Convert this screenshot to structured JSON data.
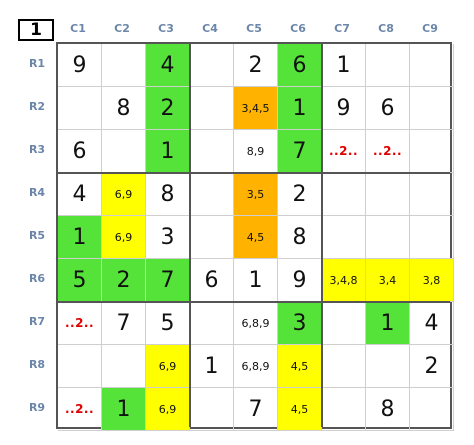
{
  "corner_label": "1",
  "columns": [
    "C1",
    "C2",
    "C3",
    "C4",
    "C5",
    "C6",
    "C7",
    "C8",
    "C9"
  ],
  "rows": [
    "R1",
    "R2",
    "R3",
    "R4",
    "R5",
    "R6",
    "R7",
    "R8",
    "R9"
  ],
  "colors": {
    "green": "#55e33a",
    "yellow": "#ffff00",
    "orange": "#ffb300",
    "hint_red": "#e00000"
  },
  "cells": [
    [
      {
        "t": "9",
        "k": "given"
      },
      {
        "t": "",
        "k": "given"
      },
      {
        "t": "4",
        "k": "given",
        "c": "green"
      },
      {
        "t": "",
        "k": "given"
      },
      {
        "t": "2",
        "k": "given"
      },
      {
        "t": "6",
        "k": "given",
        "c": "green"
      },
      {
        "t": "1",
        "k": "given"
      },
      {
        "t": "",
        "k": "given"
      },
      {
        "t": "",
        "k": "given"
      }
    ],
    [
      {
        "t": "",
        "k": "given"
      },
      {
        "t": "8",
        "k": "given"
      },
      {
        "t": "2",
        "k": "given",
        "c": "green"
      },
      {
        "t": "",
        "k": "given"
      },
      {
        "t": "3,4,5",
        "k": "cand",
        "c": "orange"
      },
      {
        "t": "1",
        "k": "given",
        "c": "green"
      },
      {
        "t": "9",
        "k": "given"
      },
      {
        "t": "6",
        "k": "given"
      },
      {
        "t": "",
        "k": "given"
      }
    ],
    [
      {
        "t": "6",
        "k": "given"
      },
      {
        "t": "",
        "k": "given"
      },
      {
        "t": "1",
        "k": "given",
        "c": "green"
      },
      {
        "t": "",
        "k": "given"
      },
      {
        "t": "8,9",
        "k": "cand"
      },
      {
        "t": "7",
        "k": "given",
        "c": "green"
      },
      {
        "t": "..2..",
        "k": "hint"
      },
      {
        "t": "..2..",
        "k": "hint"
      },
      {
        "t": "",
        "k": "given"
      }
    ],
    [
      {
        "t": "4",
        "k": "given"
      },
      {
        "t": "6,9",
        "k": "cand",
        "c": "yellow"
      },
      {
        "t": "8",
        "k": "given"
      },
      {
        "t": "",
        "k": "given"
      },
      {
        "t": "3,5",
        "k": "cand",
        "c": "orange"
      },
      {
        "t": "2",
        "k": "given"
      },
      {
        "t": "",
        "k": "given"
      },
      {
        "t": "",
        "k": "given"
      },
      {
        "t": "",
        "k": "given"
      }
    ],
    [
      {
        "t": "1",
        "k": "given",
        "c": "green"
      },
      {
        "t": "6,9",
        "k": "cand",
        "c": "yellow"
      },
      {
        "t": "3",
        "k": "given"
      },
      {
        "t": "",
        "k": "given"
      },
      {
        "t": "4,5",
        "k": "cand",
        "c": "orange"
      },
      {
        "t": "8",
        "k": "given"
      },
      {
        "t": "",
        "k": "given"
      },
      {
        "t": "",
        "k": "given"
      },
      {
        "t": "",
        "k": "given"
      }
    ],
    [
      {
        "t": "5",
        "k": "given",
        "c": "green"
      },
      {
        "t": "2",
        "k": "given",
        "c": "green"
      },
      {
        "t": "7",
        "k": "given",
        "c": "green"
      },
      {
        "t": "6",
        "k": "given"
      },
      {
        "t": "1",
        "k": "given"
      },
      {
        "t": "9",
        "k": "given"
      },
      {
        "t": "3,4,8",
        "k": "cand",
        "c": "yellow"
      },
      {
        "t": "3,4",
        "k": "cand",
        "c": "yellow"
      },
      {
        "t": "3,8",
        "k": "cand",
        "c": "yellow"
      }
    ],
    [
      {
        "t": "..2..",
        "k": "hint"
      },
      {
        "t": "7",
        "k": "given"
      },
      {
        "t": "5",
        "k": "given"
      },
      {
        "t": "",
        "k": "given"
      },
      {
        "t": "6,8,9",
        "k": "cand"
      },
      {
        "t": "3",
        "k": "given",
        "c": "green"
      },
      {
        "t": "",
        "k": "given"
      },
      {
        "t": "1",
        "k": "given",
        "c": "green"
      },
      {
        "t": "4",
        "k": "given"
      }
    ],
    [
      {
        "t": "",
        "k": "given"
      },
      {
        "t": "",
        "k": "given"
      },
      {
        "t": "6,9",
        "k": "cand",
        "c": "yellow"
      },
      {
        "t": "1",
        "k": "given"
      },
      {
        "t": "6,8,9",
        "k": "cand"
      },
      {
        "t": "4,5",
        "k": "cand",
        "c": "yellow"
      },
      {
        "t": "",
        "k": "given"
      },
      {
        "t": "",
        "k": "given"
      },
      {
        "t": "2",
        "k": "given"
      }
    ],
    [
      {
        "t": "..2..",
        "k": "hint"
      },
      {
        "t": "1",
        "k": "given",
        "c": "green"
      },
      {
        "t": "6,9",
        "k": "cand",
        "c": "yellow"
      },
      {
        "t": "",
        "k": "given"
      },
      {
        "t": "7",
        "k": "given"
      },
      {
        "t": "4,5",
        "k": "cand",
        "c": "yellow"
      },
      {
        "t": "",
        "k": "given"
      },
      {
        "t": "8",
        "k": "given"
      },
      {
        "t": "",
        "k": "given"
      }
    ]
  ]
}
